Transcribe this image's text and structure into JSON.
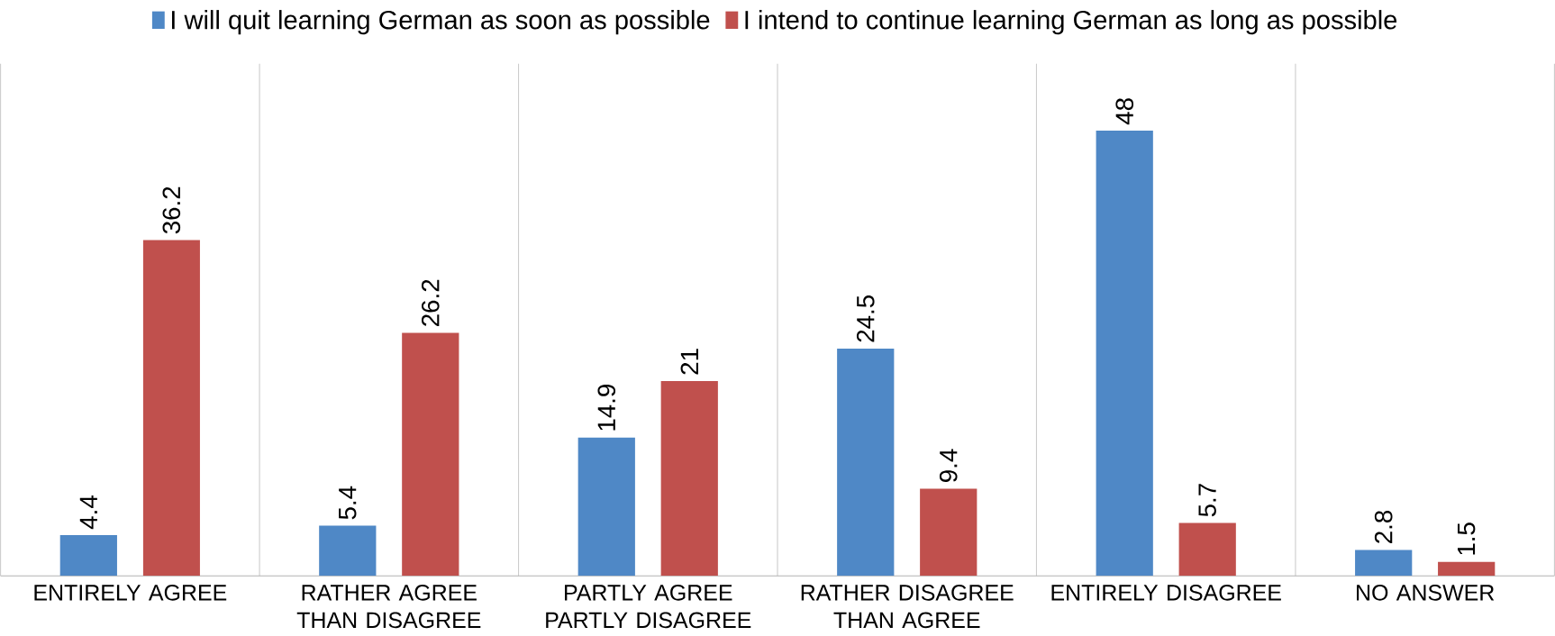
{
  "chart_data": {
    "type": "bar",
    "categories": [
      "ENTIRELY AGREE",
      "RATHER AGREE THAN DISAGREE",
      "PARTLY AGREE PARTLY DISAGREE",
      "RATHER DISAGREE THAN AGREE",
      "ENTIRELY DISAGREE",
      "NO ANSWER"
    ],
    "series": [
      {
        "name": "I will quit learning German as soon as possible",
        "color": "#4f88c6",
        "values": [
          4.4,
          5.4,
          14.9,
          24.5,
          48,
          2.8
        ]
      },
      {
        "name": "I intend to continue learning German as long as possible",
        "color": "#c0504d",
        "values": [
          36.2,
          26.2,
          21,
          9.4,
          5.7,
          1.5
        ]
      }
    ],
    "data_labels": true,
    "grid": "x",
    "legend": "top"
  }
}
